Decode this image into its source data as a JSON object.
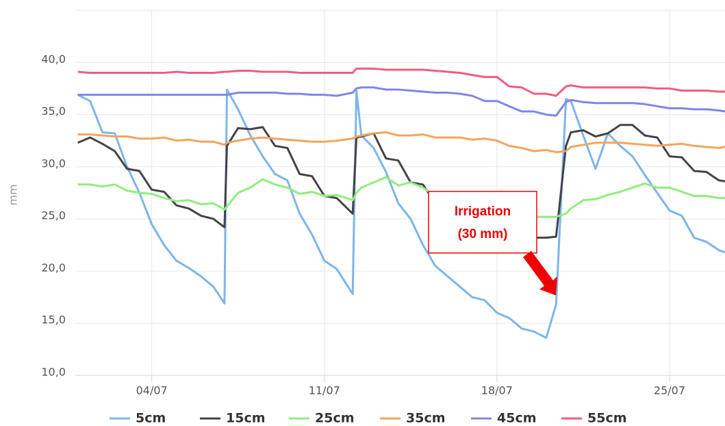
{
  "chart_data": {
    "type": "line",
    "y_label": "mm",
    "annotations": [
      "Irrigation",
      "(30 mm)"
    ],
    "xlim": [
      0.9,
      27.25
    ],
    "ylim": [
      10,
      45
    ],
    "xticks": [
      {
        "value": 4,
        "label": "04/07"
      },
      {
        "value": 11,
        "label": "11/07"
      },
      {
        "value": 18,
        "label": "18/07"
      },
      {
        "value": 25,
        "label": "25/07"
      }
    ],
    "yticks": [
      {
        "value": 10,
        "label": "10,0"
      },
      {
        "value": 15,
        "label": "15,0"
      },
      {
        "value": 20,
        "label": "20,0"
      },
      {
        "value": 25,
        "label": "25,0"
      },
      {
        "value": 30,
        "label": "30,0"
      },
      {
        "value": 35,
        "label": "35,0"
      },
      {
        "value": 40,
        "label": "40,0"
      }
    ],
    "grid": true,
    "legend": "bottom",
    "x": [
      1,
      1.5,
      2,
      2.5,
      3,
      3.5,
      4,
      4.5,
      5,
      5.5,
      6,
      6.5,
      6.95,
      7.05,
      7.5,
      8,
      8.5,
      9,
      9.5,
      10,
      10.5,
      11,
      11.5,
      12.15,
      12.3,
      12.5,
      13,
      13.5,
      14,
      14.5,
      15,
      15.5,
      16,
      16.5,
      17,
      17.5,
      18,
      18.5,
      19,
      19.5,
      20,
      20.4,
      20.8,
      21,
      21.5,
      22,
      22.5,
      23,
      23.5,
      24,
      24.5,
      25,
      25.5,
      26,
      26.5,
      27,
      27.25
    ],
    "series": [
      {
        "name": "5cm",
        "color": "#7cb5ec",
        "values": [
          36.9,
          36.3,
          33.3,
          33.2,
          30,
          27.5,
          24.5,
          22.5,
          21,
          20.3,
          19.5,
          18.5,
          16.9,
          37.4,
          35.5,
          33,
          31,
          29.3,
          28.7,
          25.5,
          23.5,
          21,
          20.2,
          17.8,
          37.3,
          33,
          31.8,
          29.5,
          26.5,
          25,
          22.5,
          20.5,
          19.5,
          18.5,
          17.5,
          17.2,
          16,
          15.5,
          14.5,
          14.2,
          13.6,
          16.8,
          36.5,
          36.3,
          33,
          29.8,
          33.2,
          32,
          31,
          29.2,
          27.5,
          25.8,
          25.3,
          23.2,
          22.8,
          22,
          21.8
        ]
      },
      {
        "name": "15cm",
        "color": "#434348",
        "values": [
          32.3,
          32.8,
          32.2,
          31.5,
          29.8,
          29.6,
          27.8,
          27.6,
          26.3,
          26,
          25.3,
          25,
          24.2,
          32,
          33.7,
          33.6,
          33.8,
          32,
          31.8,
          29.3,
          29.1,
          27.2,
          27,
          25.5,
          32.8,
          32.9,
          33.2,
          30.8,
          30.6,
          28.5,
          28.3,
          26.5,
          26,
          25,
          24.5,
          24,
          23.8,
          23.5,
          23.3,
          23.2,
          23.2,
          23.3,
          32,
          33.3,
          33.5,
          32.9,
          33.2,
          34,
          34,
          33,
          32.8,
          31,
          30.9,
          29.6,
          29.5,
          28.7,
          28.6
        ]
      },
      {
        "name": "25cm",
        "color": "#90ed7d",
        "values": [
          28.3,
          28.3,
          28.1,
          28.3,
          27.7,
          27.5,
          27.4,
          27,
          26.7,
          26.8,
          26.4,
          26.5,
          25.9,
          26.2,
          27.5,
          28,
          28.8,
          28.3,
          28,
          27.4,
          27.6,
          27.2,
          27.3,
          26.8,
          27.5,
          28,
          28.5,
          29,
          28.2,
          28.5,
          28,
          27.2,
          26.8,
          26.3,
          26,
          25.5,
          25.3,
          25.2,
          25.2,
          25.2,
          25.2,
          25.2,
          25.5,
          26,
          26.8,
          26.9,
          27.3,
          27.6,
          28,
          28.4,
          28,
          28,
          27.6,
          27.2,
          27.2,
          27,
          27
        ]
      },
      {
        "name": "35cm",
        "color": "#f7a35c",
        "values": [
          33.1,
          33.1,
          33,
          32.9,
          32.9,
          32.7,
          32.7,
          32.8,
          32.5,
          32.6,
          32.4,
          32.4,
          32.1,
          32.3,
          32.5,
          32.7,
          32.8,
          32.7,
          32.6,
          32.5,
          32.4,
          32.4,
          32.5,
          32.7,
          32.9,
          33,
          33.2,
          33.3,
          33,
          33,
          33.1,
          32.8,
          32.8,
          32.8,
          32.6,
          32.7,
          32.5,
          32,
          31.8,
          31.5,
          31.6,
          31.4,
          31.5,
          31.9,
          32.1,
          32.3,
          32.3,
          32.3,
          32.2,
          32.1,
          32,
          32.1,
          32.2,
          32,
          31.9,
          31.8,
          31.9
        ]
      },
      {
        "name": "45cm",
        "color": "#8085e9",
        "values": [
          36.9,
          36.9,
          36.9,
          36.9,
          36.9,
          36.9,
          36.9,
          36.9,
          36.9,
          36.9,
          36.9,
          36.9,
          36.9,
          36.9,
          37.1,
          37.1,
          37.1,
          37.1,
          37,
          37,
          36.9,
          36.9,
          36.8,
          37.1,
          37.5,
          37.6,
          37.6,
          37.4,
          37.4,
          37.3,
          37.2,
          37.1,
          37.1,
          37,
          36.8,
          36.3,
          36.3,
          35.8,
          35.3,
          35.3,
          35,
          34.9,
          36.2,
          36.4,
          36.2,
          36.1,
          36.1,
          36.1,
          36.1,
          36,
          35.8,
          35.6,
          35.6,
          35.5,
          35.5,
          35.4,
          35.3
        ]
      },
      {
        "name": "55cm",
        "color": "#f15c80",
        "values": [
          39.1,
          39,
          39,
          39,
          39,
          39,
          39,
          39,
          39.1,
          39,
          39,
          39,
          39.1,
          39.1,
          39.2,
          39.2,
          39.1,
          39.1,
          39.1,
          39,
          39,
          39,
          39,
          39,
          39.4,
          39.4,
          39.4,
          39.3,
          39.3,
          39.3,
          39.3,
          39.2,
          39.1,
          39,
          38.8,
          38.6,
          38.6,
          37.7,
          37.6,
          37,
          37,
          36.8,
          37.7,
          37.8,
          37.6,
          37.6,
          37.6,
          37.6,
          37.6,
          37.6,
          37.5,
          37.5,
          37.3,
          37.3,
          37.3,
          37.2,
          37.2
        ]
      }
    ]
  }
}
